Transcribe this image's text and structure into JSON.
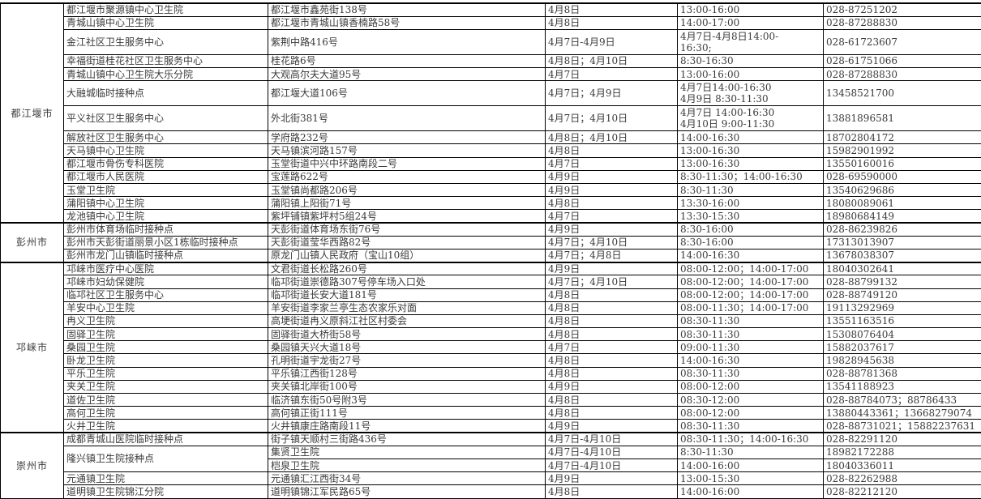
{
  "districts": [
    {
      "name": "都江堰市",
      "rows": [
        {
          "name": "都江堰市聚源镇中心卫生院",
          "address": "都江堰市鑫苑街138号",
          "date": "4月8日",
          "time": "13:00-16:00",
          "phone": "028-87251202"
        },
        {
          "name": "青城山镇中心卫生院",
          "address": "都江堰市青城山镇香楠路58号",
          "date": "4月8日",
          "time": "14:00-17:00",
          "phone": "028-87288830"
        },
        {
          "name": "金江社区卫生服务中心",
          "address": "紫荆中路416号",
          "date": "4月7日-4月9日",
          "time": "4月7日-4月8日14:00-\n16:30;",
          "phone": "028-61723607"
        },
        {
          "name": "幸福街道桂花社区卫生服务中心",
          "address": "桂花路6号",
          "date": "4月8日；4月10日",
          "time": "8:30-16:30",
          "phone": "028-61751066"
        },
        {
          "name": "青城山镇中心卫生院大乐分院",
          "address": "大观高尔夫大道95号",
          "date": "4月7日",
          "time": "13:00-16:00",
          "phone": "028-87288830"
        },
        {
          "name": "大融城临时接种点",
          "address": "都江堰大道106号",
          "date": "4月7日；4月9日",
          "time": "4月7日14:00-16:30\n4月9日 8:30-11:30",
          "phone": "13458521700"
        },
        {
          "name": "平义社区卫生服务中心",
          "address": "外北街381号",
          "date": "4月7日；4月10日",
          "time": "4月7日 14:00-16:30\n4月10日 9:00-11:30",
          "phone": "13881896581"
        },
        {
          "name": "解放社区卫生服务中心",
          "address": "学府路232号",
          "date": "4月8日；4月10日",
          "time": "14:00-16:30",
          "phone": "18702804172"
        },
        {
          "name": "天马镇中心卫生院",
          "address": "天马镇滨河路157号",
          "date": "4月8日",
          "time": "13:00-16:30",
          "phone": "15982901992"
        },
        {
          "name": "都江堰市骨伤专科医院",
          "address": "玉堂街道中兴中环路南段二号",
          "date": "4月7日",
          "time": "13:00-16:30",
          "phone": "13550160016"
        },
        {
          "name": "都江堰市人民医院",
          "address": "宝莲路622号",
          "date": "4月9日",
          "time": "8:30-11:30；14:00-16:30",
          "phone": "028-69590000"
        },
        {
          "name": "玉堂卫生院",
          "address": "玉堂镇尚都路206号",
          "date": "4月9日",
          "time": "8:30-11:30",
          "phone": "13540629686"
        },
        {
          "name": "蒲阳镇中心卫生院",
          "address": "蒲阳镇上阳街71号",
          "date": "4月8日",
          "time": "13:30-16:00",
          "phone": "18080089061"
        },
        {
          "name": "龙池镇中心卫生院",
          "address": "紫坪铺镇紫坪村5组24号",
          "date": "4月7日",
          "time": "13:30-15:30",
          "phone": "18980684149"
        }
      ]
    },
    {
      "name": "彭州市",
      "rows": [
        {
          "name": "彭州市体育场临时接种点",
          "address": "天彭街道体育场东街76号",
          "date": "4月9日",
          "time": "8:30-16:00",
          "phone": "028-86239826"
        },
        {
          "name": "彭州市天彭街道丽景小区1栋临时接种点",
          "address": "天彭街道莹华西路82号",
          "date": "4月7日；4月10日",
          "time": "8:30-16:00",
          "phone": "17313013907"
        },
        {
          "name": "彭州市龙门山镇临时接种点",
          "address": "原龙门山镇人民政府（宝山10组）",
          "date": "4月7日；4月8日",
          "time": "14:00-16:30",
          "phone": "13678038307"
        }
      ]
    },
    {
      "name": "邛崃市",
      "rows": [
        {
          "name": "邛崃市医疗中心医院",
          "address": "文君街道长松路260号",
          "date": "4月9日",
          "time": "08:00-12:00；14:00-17:00",
          "phone": "18040302641"
        },
        {
          "name": "邛崃市妇幼保健院",
          "address": "临邛街道崇德路307号停车场入口处",
          "date": "4月7日；4月10日",
          "time": "08:00-12:00；14:00-17:00",
          "phone": "028-88799132"
        },
        {
          "name": "临邛社区卫生服务中心",
          "address": "临邛街道长安大道181号",
          "date": "4月8日",
          "time": "08:00-12:00；14:00-17:00",
          "phone": "028-88749120"
        },
        {
          "name": "羊安中心卫生院",
          "address": "羊安街道李家兰亭生态农家乐对面",
          "date": "4月8日",
          "time": "08:00-11:30；14:00-17:00",
          "phone": "19113292969"
        },
        {
          "name": "冉义卫生院",
          "address": "高埂街道冉义原斜江社区村委会",
          "date": "4月8日",
          "time": "08:30-11:30",
          "phone": "13551163516"
        },
        {
          "name": "固驿卫生院",
          "address": "固驿街道大桥街58号",
          "date": "4月8日",
          "time": "08:30-11:30",
          "phone": "15308076404"
        },
        {
          "name": "桑园卫生院",
          "address": "桑园镇天兴大道18号",
          "date": "4月7日",
          "time": "09:00-11:30",
          "phone": "15882037617"
        },
        {
          "name": "卧龙卫生院",
          "address": "孔明街道宇龙街27号",
          "date": "4月8日",
          "time": "14:00-16:30",
          "phone": "19828945638"
        },
        {
          "name": "平乐卫生院",
          "address": "平乐镇江西街128号",
          "date": "4月8日",
          "time": "08:30-11:30",
          "phone": "028-88781368"
        },
        {
          "name": "夹关卫生院",
          "address": "夹关镇北岸街100号",
          "date": "4月9日",
          "time": "08:00-12:00",
          "phone": "13541188923"
        },
        {
          "name": "道佐卫生院",
          "address": "临济镇东街50号附3号",
          "date": "4月8日",
          "time": "08:30-12:00",
          "phone": "028-88784073；88786433"
        },
        {
          "name": "高何卫生院",
          "address": "高何镇正街111号",
          "date": "4月8日",
          "time": "08:00-12:00",
          "phone": "13880443361；13668279074"
        },
        {
          "name": "火井卫生院",
          "address": "火井镇康庄路南段11号",
          "date": "4月9日",
          "time": "08:30-11:30",
          "phone": "028-88731021；15882237631"
        }
      ]
    },
    {
      "name": "崇州市",
      "rows": [
        {
          "name": "成都青城山医院临时接种点",
          "address": "街子镇天顺村三街路436号",
          "date": "4月7日-4月10日",
          "time": "08:30-11:30；14:00-16:30",
          "phone": "028-82291120"
        },
        {
          "name": "隆兴镇卫生院接种点",
          "sub": [
            {
              "address": "集贤卫生院",
              "date": "4月7日-4月10日",
              "time": "8:30-11:30",
              "phone": "18982172288"
            },
            {
              "address": "桤泉卫生院",
              "date": "4月7日-4月10日",
              "time": "14:00-16:00",
              "phone": "18040336011"
            }
          ]
        },
        {
          "name": "元通镇卫生院",
          "address": "元通镇汇江西街34号",
          "date": "4月9日",
          "time": "13:00-15:30",
          "phone": "028-82262988"
        },
        {
          "name": "道明镇卫生院锦江分院",
          "address": "道明镇锦江军民路65号",
          "date": "4月8日",
          "time": "14:00-16:00",
          "phone": "028-82212120"
        }
      ]
    }
  ]
}
